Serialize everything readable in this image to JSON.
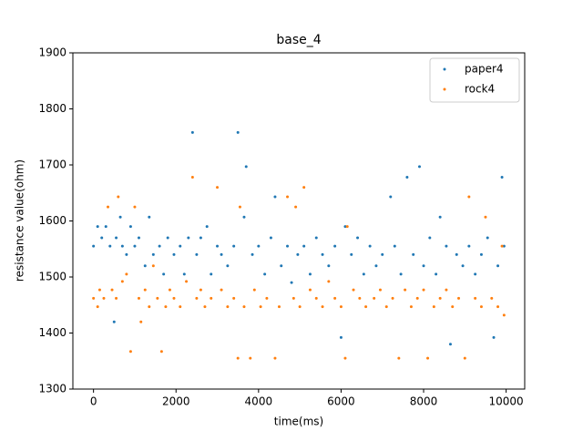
{
  "chart_data": {
    "type": "scatter",
    "title": "base_4",
    "xlabel": "time(ms)",
    "ylabel": "resistance value(ohm)",
    "xlim": [
      -500,
      10450
    ],
    "ylim": [
      1300,
      1900
    ],
    "xticks": [
      0,
      2000,
      4000,
      6000,
      8000,
      10000
    ],
    "yticks": [
      1300,
      1400,
      1500,
      1600,
      1700,
      1800,
      1900
    ],
    "legend": "upper right",
    "series": [
      {
        "name": "paper4",
        "color": "#1f77b4",
        "x": [
          0,
          100,
          200,
          300,
          400,
          500,
          550,
          650,
          700,
          800,
          900,
          1000,
          1100,
          1250,
          1350,
          1450,
          1600,
          1700,
          1800,
          1950,
          2100,
          2200,
          2300,
          2400,
          2500,
          2600,
          2750,
          2850,
          3000,
          3100,
          3250,
          3400,
          3500,
          3650,
          3700,
          3850,
          4000,
          4150,
          4300,
          4400,
          4550,
          4700,
          4800,
          4950,
          5100,
          5250,
          5400,
          5550,
          5700,
          5850,
          6000,
          6100,
          6250,
          6400,
          6550,
          6700,
          6850,
          7000,
          7200,
          7300,
          7450,
          7600,
          7750,
          7900,
          8000,
          8150,
          8300,
          8400,
          8550,
          8650,
          8800,
          8950,
          9100,
          9250,
          9400,
          9550,
          9700,
          9800,
          9900,
          9950
        ],
        "values": [
          1555,
          1590,
          1570,
          1590,
          1555,
          1420,
          1570,
          1607,
          1555,
          1540,
          1590,
          1555,
          1570,
          1520,
          1607,
          1540,
          1555,
          1505,
          1570,
          1540,
          1555,
          1505,
          1570,
          1758,
          1540,
          1570,
          1590,
          1505,
          1555,
          1540,
          1520,
          1555,
          1758,
          1607,
          1697,
          1540,
          1555,
          1505,
          1570,
          1643,
          1520,
          1555,
          1490,
          1540,
          1555,
          1505,
          1570,
          1540,
          1520,
          1555,
          1392,
          1590,
          1540,
          1570,
          1505,
          1555,
          1520,
          1540,
          1643,
          1555,
          1505,
          1678,
          1540,
          1697,
          1520,
          1570,
          1505,
          1607,
          1555,
          1380,
          1540,
          1520,
          1555,
          1505,
          1540,
          1570,
          1392,
          1520,
          1678,
          1555
        ]
      },
      {
        "name": "rock4",
        "color": "#ff7f0e",
        "x": [
          0,
          100,
          150,
          250,
          350,
          450,
          550,
          600,
          700,
          800,
          900,
          1000,
          1100,
          1150,
          1250,
          1350,
          1450,
          1550,
          1650,
          1750,
          1850,
          1950,
          2100,
          2250,
          2400,
          2500,
          2600,
          2700,
          2850,
          3000,
          3100,
          3250,
          3400,
          3500,
          3550,
          3650,
          3800,
          3900,
          4050,
          4200,
          4400,
          4500,
          4700,
          4850,
          4900,
          5000,
          5100,
          5250,
          5400,
          5550,
          5700,
          5850,
          6000,
          6100,
          6150,
          6300,
          6450,
          6600,
          6800,
          6950,
          7100,
          7250,
          7400,
          7550,
          7700,
          7850,
          8000,
          8100,
          8250,
          8400,
          8550,
          8700,
          8850,
          9000,
          9100,
          9250,
          9400,
          9500,
          9650,
          9800,
          9900,
          9950
        ],
        "values": [
          1462,
          1447,
          1477,
          1462,
          1625,
          1477,
          1462,
          1643,
          1492,
          1505,
          1367,
          1625,
          1462,
          1420,
          1477,
          1447,
          1520,
          1462,
          1367,
          1447,
          1477,
          1462,
          1447,
          1492,
          1678,
          1462,
          1477,
          1447,
          1462,
          1660,
          1477,
          1447,
          1462,
          1355,
          1625,
          1447,
          1355,
          1477,
          1447,
          1462,
          1355,
          1447,
          1643,
          1462,
          1625,
          1447,
          1660,
          1477,
          1462,
          1447,
          1492,
          1462,
          1447,
          1355,
          1590,
          1477,
          1462,
          1447,
          1462,
          1477,
          1447,
          1462,
          1355,
          1477,
          1447,
          1462,
          1477,
          1355,
          1447,
          1462,
          1477,
          1447,
          1462,
          1355,
          1643,
          1462,
          1447,
          1607,
          1462,
          1447,
          1555,
          1432
        ]
      }
    ]
  }
}
